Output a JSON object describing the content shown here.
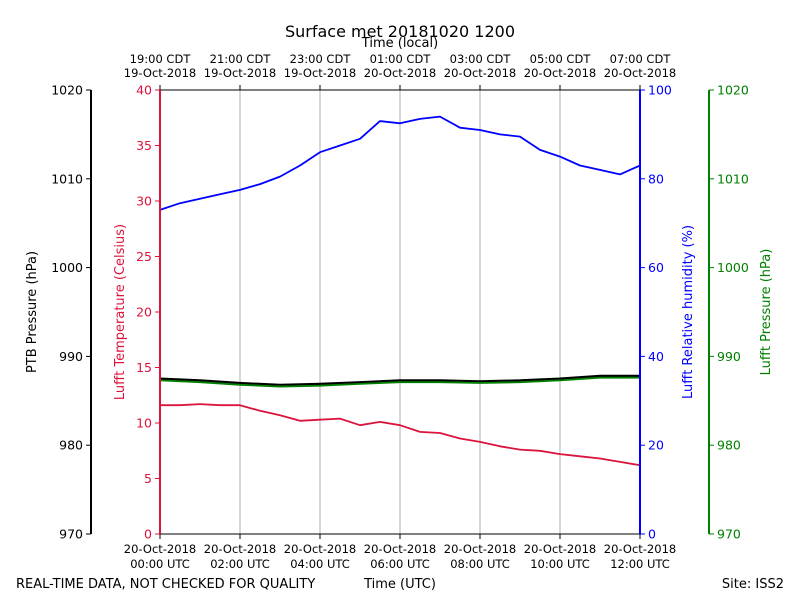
{
  "chart_data": {
    "type": "line",
    "title": "Surface met 20181020 1200",
    "top_axis_label": "Time (local)",
    "xlabel": "Time (UTC)",
    "footer_left": "REAL-TIME DATA, NOT CHECKED FOR QUALITY",
    "footer_right": "Site: ISS2",
    "x_hours_range": [
      0,
      12
    ],
    "top_ticks": [
      {
        "h": 0,
        "l1": "19:00 CDT",
        "l2": "19-Oct-2018"
      },
      {
        "h": 2,
        "l1": "21:00 CDT",
        "l2": "19-Oct-2018"
      },
      {
        "h": 4,
        "l1": "23:00 CDT",
        "l2": "19-Oct-2018"
      },
      {
        "h": 6,
        "l1": "01:00 CDT",
        "l2": "20-Oct-2018"
      },
      {
        "h": 8,
        "l1": "03:00 CDT",
        "l2": "20-Oct-2018"
      },
      {
        "h": 10,
        "l1": "05:00 CDT",
        "l2": "20-Oct-2018"
      },
      {
        "h": 12,
        "l1": "07:00 CDT",
        "l2": "20-Oct-2018"
      }
    ],
    "bottom_ticks": [
      {
        "h": 0,
        "l1": "20-Oct-2018",
        "l2": "00:00 UTC"
      },
      {
        "h": 2,
        "l1": "20-Oct-2018",
        "l2": "02:00 UTC"
      },
      {
        "h": 4,
        "l1": "20-Oct-2018",
        "l2": "04:00 UTC"
      },
      {
        "h": 6,
        "l1": "20-Oct-2018",
        "l2": "06:00 UTC"
      },
      {
        "h": 8,
        "l1": "20-Oct-2018",
        "l2": "08:00 UTC"
      },
      {
        "h": 10,
        "l1": "20-Oct-2018",
        "l2": "10:00 UTC"
      },
      {
        "h": 12,
        "l1": "20-Oct-2018",
        "l2": "12:00 UTC"
      }
    ],
    "axes": {
      "ptb": {
        "label": "PTB Pressure (hPa)",
        "range": [
          970,
          1020
        ],
        "ticks": [
          970,
          980,
          990,
          1000,
          1010,
          1020
        ],
        "color": "#000000"
      },
      "temp": {
        "label": "Lufft Temperature (Celsius)",
        "range": [
          0,
          40
        ],
        "ticks": [
          0,
          5,
          10,
          15,
          20,
          25,
          30,
          35,
          40
        ],
        "color": "#dc143c"
      },
      "rh": {
        "label": "Lufft Relative humidity (%)",
        "range": [
          0,
          100
        ],
        "ticks": [
          0,
          20,
          40,
          60,
          80,
          100
        ],
        "color": "#0000ff"
      },
      "lufft_p": {
        "label": "Lufft Pressure (hPa)",
        "range": [
          970,
          1020
        ],
        "ticks": [
          970,
          980,
          990,
          1000,
          1010,
          1020
        ],
        "color": "#008000"
      }
    },
    "series": [
      {
        "name": "Lufft Relative humidity",
        "axis": "rh",
        "color": "#0000ff",
        "x": [
          0,
          0.5,
          1,
          1.5,
          2,
          2.5,
          3,
          3.5,
          4,
          4.5,
          5,
          5.5,
          6,
          6.5,
          7,
          7.5,
          8,
          8.5,
          9,
          9.5,
          10,
          10.5,
          11,
          11.5,
          12
        ],
        "y": [
          73,
          74.5,
          75.5,
          76.5,
          77.5,
          78.8,
          80.5,
          83,
          86,
          87.5,
          89,
          93,
          92.5,
          93.5,
          94,
          91.5,
          91,
          90,
          89.5,
          86.5,
          85,
          83,
          82,
          81,
          83
        ]
      },
      {
        "name": "Lufft Temperature",
        "axis": "temp",
        "color": "#dc143c",
        "x": [
          0,
          0.5,
          1,
          1.5,
          2,
          2.5,
          3,
          3.5,
          4,
          4.5,
          5,
          5.5,
          6,
          6.5,
          7,
          7.5,
          8,
          8.5,
          9,
          9.5,
          10,
          10.5,
          11,
          11.5,
          12
        ],
        "y": [
          11.6,
          11.6,
          11.7,
          11.6,
          11.6,
          11.1,
          10.7,
          10.2,
          10.3,
          10.4,
          9.8,
          10.1,
          9.8,
          9.2,
          9.1,
          8.6,
          8.3,
          7.9,
          7.6,
          7.5,
          7.2,
          7,
          6.8,
          6.5,
          6.2
        ]
      },
      {
        "name": "PTB Pressure",
        "axis": "ptb",
        "color": "#000000",
        "x": [
          0,
          1,
          2,
          3,
          4,
          5,
          6,
          7,
          8,
          9,
          10,
          11,
          12
        ],
        "y": [
          987.5,
          987.3,
          987.0,
          986.8,
          986.9,
          987.1,
          987.3,
          987.3,
          987.2,
          987.3,
          987.5,
          987.8,
          987.8
        ]
      },
      {
        "name": "Lufft Pressure",
        "axis": "lufft_p",
        "color": "#008000",
        "x": [
          0,
          1,
          2,
          3,
          4,
          5,
          6,
          7,
          8,
          9,
          10,
          11,
          12
        ],
        "y": [
          987.3,
          987.1,
          986.8,
          986.6,
          986.7,
          986.9,
          987.1,
          987.1,
          987.0,
          987.1,
          987.3,
          987.6,
          987.6
        ]
      }
    ]
  }
}
